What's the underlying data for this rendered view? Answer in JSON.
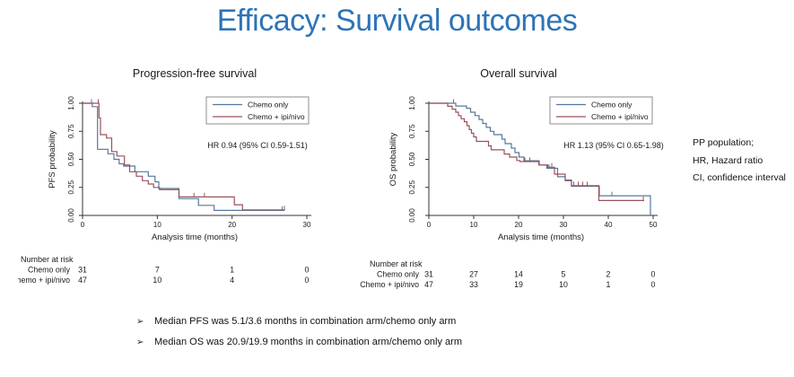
{
  "slide": {
    "title": "Efficacy: Survival outcomes"
  },
  "colors": {
    "title_accent": "#2e74b6",
    "chemo_only_line": "#56789c",
    "chemo_ipi_nivo_line": "#9a525c",
    "axis": "#333333",
    "legend_border": "#8c8c8c",
    "text": "#1a1a1a"
  },
  "side_notes": [
    "PP population;",
    "HR, Hazard ratio",
    "CI, confidence interval"
  ],
  "bullets": {
    "marker": "➢",
    "items": [
      "Median PFS was 5.1/3.6 months in combination arm/chemo only arm",
      "Median OS was 20.9/19.9 months in combination arm/chemo only arm"
    ]
  },
  "chart_data": [
    {
      "type": "line",
      "kind": "kaplan-meier-step",
      "title": "Progression-free survival",
      "xlabel": "Analysis time (months)",
      "ylabel": "PFS probability",
      "xlim": [
        0,
        30
      ],
      "xticks": [
        0,
        10,
        20,
        30
      ],
      "ylim": [
        0,
        1
      ],
      "yticks": [
        0.0,
        0.25,
        0.5,
        0.75,
        1.0
      ],
      "grid": false,
      "legend_position": "top-right",
      "annotation": "HR 0.94 (95% CI 0.59-1.51)",
      "series": [
        {
          "name": "Chemo only",
          "color": "#56789c",
          "steps": [
            [
              0,
              1.0
            ],
            [
              1.3,
              0.97
            ],
            [
              2.0,
              0.59
            ],
            [
              3.4,
              0.55
            ],
            [
              4.2,
              0.5
            ],
            [
              4.9,
              0.46
            ],
            [
              5.5,
              0.44
            ],
            [
              7.0,
              0.39
            ],
            [
              8.8,
              0.35
            ],
            [
              9.7,
              0.3
            ],
            [
              10.2,
              0.24
            ],
            [
              12.9,
              0.15
            ],
            [
              15.5,
              0.09
            ],
            [
              17.6,
              0.045
            ],
            [
              27.0,
              0.045
            ]
          ],
          "censors": [
            [
              1.2,
              1.0
            ],
            [
              26.7,
              0.045
            ]
          ]
        },
        {
          "name": "Chemo + ipi/nivo",
          "color": "#9a525c",
          "steps": [
            [
              0,
              1.0
            ],
            [
              2.2,
              0.87
            ],
            [
              2.4,
              0.72
            ],
            [
              3.2,
              0.69
            ],
            [
              3.9,
              0.57
            ],
            [
              4.6,
              0.53
            ],
            [
              5.6,
              0.45
            ],
            [
              6.3,
              0.39
            ],
            [
              7.2,
              0.35
            ],
            [
              8.0,
              0.31
            ],
            [
              8.8,
              0.28
            ],
            [
              9.5,
              0.25
            ],
            [
              10.3,
              0.23
            ],
            [
              12.9,
              0.165
            ],
            [
              20.3,
              0.095
            ],
            [
              21.4,
              0.05
            ],
            [
              27.1,
              0.05
            ]
          ],
          "censors": [
            [
              2.1,
              1.0
            ],
            [
              14.9,
              0.165
            ],
            [
              16.3,
              0.165
            ],
            [
              27.0,
              0.05
            ]
          ]
        }
      ],
      "number_at_risk": {
        "header": "Number at risk",
        "rows": [
          {
            "label": "Chemo only",
            "values": [
              "31",
              "7",
              "1",
              "0"
            ]
          },
          {
            "label": "Chemo + ipi/nivo",
            "values": [
              "47",
              "10",
              "4",
              "0"
            ]
          }
        ]
      }
    },
    {
      "type": "line",
      "kind": "kaplan-meier-step",
      "title": "Overall survival",
      "xlabel": "Analysis time (months)",
      "ylabel": "OS probability",
      "xlim": [
        0,
        50
      ],
      "xticks": [
        0,
        10,
        20,
        30,
        40,
        50
      ],
      "ylim": [
        0,
        1
      ],
      "yticks": [
        0.0,
        0.25,
        0.5,
        0.75,
        1.0
      ],
      "grid": false,
      "legend_position": "top-right",
      "annotation": "HR 1.13 (95% CI 0.65-1.98)",
      "series": [
        {
          "name": "Chemo only",
          "color": "#56789c",
          "steps": [
            [
              0,
              1.0
            ],
            [
              6.0,
              0.975
            ],
            [
              8.4,
              0.955
            ],
            [
              9.3,
              0.92
            ],
            [
              10.3,
              0.89
            ],
            [
              11.2,
              0.855
            ],
            [
              12.0,
              0.82
            ],
            [
              12.8,
              0.785
            ],
            [
              13.7,
              0.75
            ],
            [
              14.5,
              0.72
            ],
            [
              16.3,
              0.68
            ],
            [
              17.0,
              0.64
            ],
            [
              18.4,
              0.6
            ],
            [
              19.2,
              0.56
            ],
            [
              20.1,
              0.52
            ],
            [
              21.2,
              0.487
            ],
            [
              24.6,
              0.45
            ],
            [
              26.3,
              0.42
            ],
            [
              28.7,
              0.345
            ],
            [
              30.4,
              0.31
            ],
            [
              31.8,
              0.26
            ],
            [
              38.0,
              0.175
            ],
            [
              49.3,
              0.175
            ],
            [
              49.4,
              0.0
            ]
          ],
          "censors": [
            [
              5.5,
              1.0
            ],
            [
              26.8,
              0.42
            ],
            [
              40.8,
              0.175
            ]
          ]
        },
        {
          "name": "Chemo + ipi/nivo",
          "color": "#9a525c",
          "steps": [
            [
              0,
              1.0
            ],
            [
              4.2,
              0.973
            ],
            [
              5.2,
              0.947
            ],
            [
              6.0,
              0.92
            ],
            [
              6.6,
              0.89
            ],
            [
              7.2,
              0.862
            ],
            [
              7.9,
              0.835
            ],
            [
              8.5,
              0.8
            ],
            [
              9.0,
              0.765
            ],
            [
              9.5,
              0.733
            ],
            [
              10.0,
              0.7
            ],
            [
              10.6,
              0.66
            ],
            [
              13.3,
              0.62
            ],
            [
              13.9,
              0.585
            ],
            [
              16.8,
              0.547
            ],
            [
              18.0,
              0.52
            ],
            [
              19.6,
              0.49
            ],
            [
              20.3,
              0.48
            ],
            [
              24.5,
              0.45
            ],
            [
              26.5,
              0.43
            ],
            [
              28.0,
              0.368
            ],
            [
              30.4,
              0.315
            ],
            [
              31.8,
              0.265
            ],
            [
              37.9,
              0.133
            ],
            [
              48.0,
              0.133
            ]
          ],
          "censors": [
            [
              21.4,
              0.48
            ],
            [
              22.5,
              0.48
            ],
            [
              27.4,
              0.43
            ],
            [
              32.3,
              0.265
            ],
            [
              33.3,
              0.265
            ],
            [
              34.3,
              0.265
            ],
            [
              35.3,
              0.265
            ],
            [
              47.8,
              0.133
            ]
          ]
        }
      ],
      "number_at_risk": {
        "header": "Number at risk",
        "rows": [
          {
            "label": "Chemo only",
            "values": [
              "31",
              "27",
              "14",
              "5",
              "2",
              "0"
            ]
          },
          {
            "label": "Chemo + ipi/nivo",
            "values": [
              "47",
              "33",
              "19",
              "10",
              "1",
              "0"
            ]
          }
        ]
      }
    }
  ]
}
